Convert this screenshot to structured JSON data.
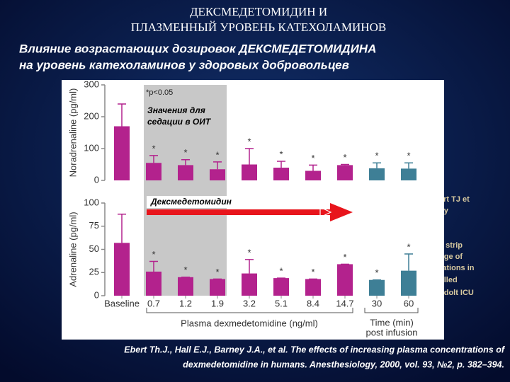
{
  "slide": {
    "title": [
      "ДЕКСМЕДЕТОМИДИН И",
      "ПЛАЗМЕННЫЙ УРОВЕНЬ КАТЕХОЛАМИНОВ"
    ],
    "subtitle": [
      "Влияние возрастающих дозировок ДЕКСМЕДЕТОМИДИНА",
      "на уровень катехоламинов у здоровых добровольцев"
    ],
    "hidden_text": [
      "ert TJ et",
      "gy",
      "t.",
      "y strip",
      "nge of",
      "rations in",
      "olled",
      "odolt ICU"
    ],
    "citation": [
      "Ebert Th.J., Hall E.J., Barney J.A., et al. The effects of increasing plasma concentrations of",
      "dexmedetomidine in humans. Anesthesiology, 2000, vol. 93, №2, p. 382–394."
    ]
  },
  "figure": {
    "p_note": "*p<0.05",
    "shade_note": [
      "Значения для",
      "седации в ОИТ"
    ],
    "arrow_label": "Дексмедетомидин",
    "x_groups": [
      "Plasma dexmedetomidine (ng/ml)",
      "Time (min)",
      "post infusion"
    ]
  },
  "chart_data": [
    {
      "type": "bar",
      "y_label": "Noradrenaline (pg/ml)",
      "ylim": [
        0,
        300
      ],
      "yticks": [
        0,
        100,
        200,
        300
      ],
      "values": [
        170,
        55,
        48,
        35,
        50,
        40,
        30,
        48,
        38,
        37
      ],
      "errors": [
        70,
        23,
        17,
        23,
        50,
        20,
        18,
        2,
        17,
        18
      ],
      "significance": [
        null,
        "*",
        "*",
        "*",
        "*",
        "*",
        "*",
        "*",
        "*",
        "*"
      ],
      "colors": [
        "#b3228d",
        "#b3228d",
        "#b3228d",
        "#b3228d",
        "#b3228d",
        "#b3228d",
        "#b3228d",
        "#b3228d",
        "#3e7f96",
        "#3e7f96"
      ]
    },
    {
      "type": "bar",
      "y_label": "Adrenaline (pg/ml)",
      "ylim": [
        0,
        100
      ],
      "yticks": [
        0,
        25,
        50,
        75,
        100
      ],
      "categories": [
        "Baseline",
        "0.7",
        "1.2",
        "1.9",
        "3.2",
        "5.1",
        "8.4",
        "14.7",
        "30",
        "60"
      ],
      "values": [
        57,
        26,
        20,
        18,
        24,
        19,
        18,
        34,
        17,
        27
      ],
      "errors": [
        31,
        11,
        0,
        0,
        15,
        0,
        0,
        0,
        0,
        18
      ],
      "significance": [
        null,
        "*",
        "*",
        "*",
        "*",
        "*",
        "*",
        "*",
        "*",
        "*"
      ],
      "colors": [
        "#b3228d",
        "#b3228d",
        "#b3228d",
        "#b3228d",
        "#b3228d",
        "#b3228d",
        "#b3228d",
        "#b3228d",
        "#3e7f96",
        "#3e7f96"
      ]
    }
  ]
}
